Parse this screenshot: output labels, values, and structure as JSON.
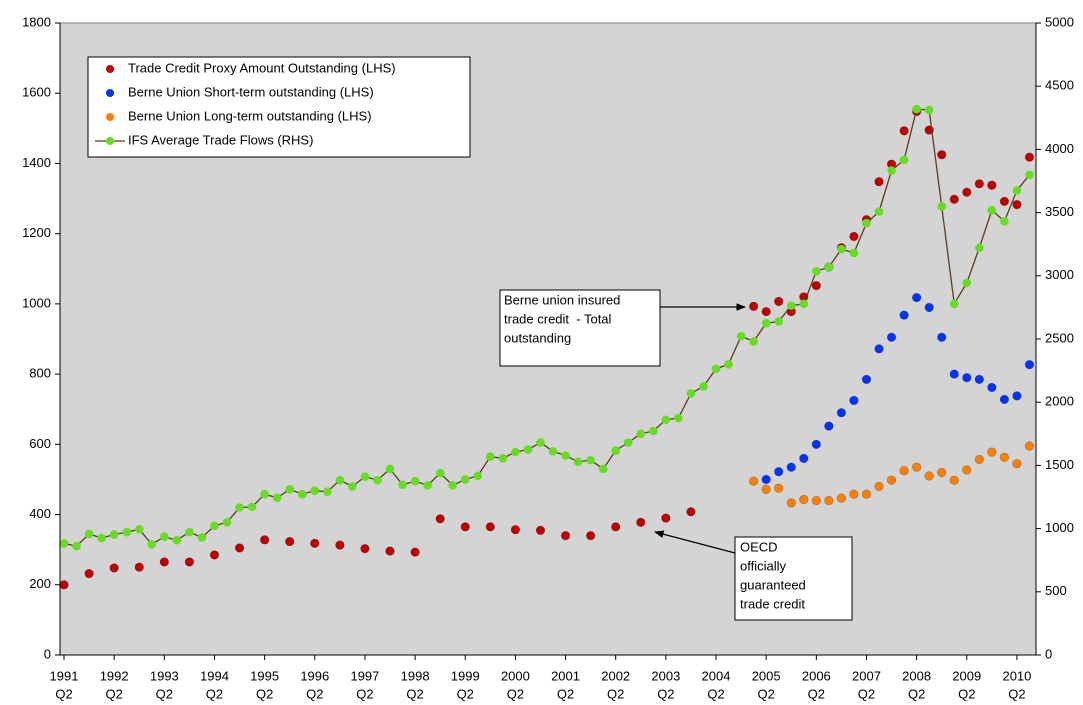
{
  "chart_data": {
    "type": "line",
    "xlim": [
      1991.17,
      2010.63
    ],
    "xticks": [
      {
        "value": 1991.25,
        "label": [
          "1991",
          "Q2"
        ]
      },
      {
        "value": 1992.25,
        "label": [
          "1992",
          "Q2"
        ]
      },
      {
        "value": 1993.25,
        "label": [
          "1993",
          "Q2"
        ]
      },
      {
        "value": 1994.25,
        "label": [
          "1994",
          "Q2"
        ]
      },
      {
        "value": 1995.25,
        "label": [
          "1995",
          "Q2"
        ]
      },
      {
        "value": 1996.25,
        "label": [
          "1996",
          "Q2"
        ]
      },
      {
        "value": 1997.25,
        "label": [
          "1997",
          "Q2"
        ]
      },
      {
        "value": 1998.25,
        "label": [
          "1998",
          "Q2"
        ]
      },
      {
        "value": 1999.25,
        "label": [
          "1999",
          "Q2"
        ]
      },
      {
        "value": 2000.25,
        "label": [
          "2000",
          "Q2"
        ]
      },
      {
        "value": 2001.25,
        "label": [
          "2001",
          "Q2"
        ]
      },
      {
        "value": 2002.25,
        "label": [
          "2002",
          "Q2"
        ]
      },
      {
        "value": 2003.25,
        "label": [
          "2003",
          "Q2"
        ]
      },
      {
        "value": 2004.25,
        "label": [
          "2004",
          "Q2"
        ]
      },
      {
        "value": 2005.25,
        "label": [
          "2005",
          "Q2"
        ]
      },
      {
        "value": 2006.25,
        "label": [
          "2006",
          "Q2"
        ]
      },
      {
        "value": 2007.25,
        "label": [
          "2007",
          "Q2"
        ]
      },
      {
        "value": 2008.25,
        "label": [
          "2008",
          "Q2"
        ]
      },
      {
        "value": 2009.25,
        "label": [
          "2009",
          "Q2"
        ]
      },
      {
        "value": 2010.25,
        "label": [
          "2010",
          "Q2"
        ]
      }
    ],
    "ylim": [
      0,
      1800
    ],
    "yticks": [
      0,
      200,
      400,
      600,
      800,
      1000,
      1200,
      1400,
      1600,
      1800
    ],
    "y2lim": [
      0,
      5000
    ],
    "y2ticks": [
      0,
      500,
      1000,
      1500,
      2000,
      2500,
      3000,
      3500,
      4000,
      4500,
      5000
    ],
    "background": "#d4d4d4",
    "series": [
      {
        "name": "Trade Credit Proxy Amount Outstanding (LHS)",
        "color": "#c00000",
        "line": false,
        "x": [
          1991.25,
          1991.75,
          1992.25,
          1992.75,
          1993.25,
          1993.75,
          1994.25,
          1994.75,
          1995.25,
          1995.75,
          1996.25,
          1996.75,
          1997.25,
          1997.75,
          1998.25,
          1998.75,
          1999.25,
          1999.75,
          2000.25,
          2000.75,
          2001.25,
          2001.75,
          2002.25,
          2002.75,
          2003.25,
          2003.75,
          2005.0,
          2005.25,
          2005.5,
          2005.75,
          2006.0,
          2006.25,
          2006.5,
          2006.75,
          2007.0,
          2007.25,
          2007.5,
          2007.75,
          2008.0,
          2008.25,
          2008.5,
          2008.75,
          2009.0,
          2009.25,
          2009.5,
          2009.75,
          2010.0,
          2010.25,
          2010.5
        ],
        "values": [
          200,
          232,
          248,
          250,
          265,
          265,
          285,
          305,
          328,
          323,
          318,
          313,
          303,
          296,
          293,
          388,
          365,
          365,
          357,
          355,
          340,
          340,
          365,
          378,
          390,
          408,
          993,
          978,
          1007,
          978,
          1020,
          1052,
          1105,
          1160,
          1192,
          1240,
          1348,
          1398,
          1493,
          1548,
          1495,
          1425,
          1298,
          1318,
          1342,
          1338,
          1292,
          1283,
          1418
        ]
      },
      {
        "name": "Berne Union Short-term outstanding (LHS)",
        "color": "#0033ff",
        "line": false,
        "x": [
          2005.25,
          2005.5,
          2005.75,
          2006.0,
          2006.25,
          2006.5,
          2006.75,
          2007.0,
          2007.25,
          2007.5,
          2007.75,
          2008.0,
          2008.25,
          2008.5,
          2008.75,
          2009.0,
          2009.25,
          2009.5,
          2009.75,
          2010.0,
          2010.25,
          2010.5
        ],
        "values": [
          500,
          522,
          535,
          560,
          600,
          652,
          690,
          725,
          785,
          872,
          905,
          968,
          1018,
          990,
          905,
          800,
          790,
          785,
          762,
          728,
          738,
          827
        ]
      },
      {
        "name": "Berne Union Long-term outstanding (LHS)",
        "color": "#ff8000",
        "line": false,
        "x": [
          2005.0,
          2005.25,
          2005.5,
          2005.75,
          2006.0,
          2006.25,
          2006.5,
          2006.75,
          2007.0,
          2007.25,
          2007.5,
          2007.75,
          2008.0,
          2008.25,
          2008.5,
          2008.75,
          2009.0,
          2009.25,
          2009.5,
          2009.75,
          2010.0,
          2010.25,
          2010.5
        ],
        "values": [
          495,
          472,
          475,
          433,
          443,
          440,
          440,
          447,
          458,
          458,
          480,
          498,
          525,
          535,
          510,
          520,
          498,
          527,
          557,
          578,
          563,
          545,
          595
        ]
      },
      {
        "name": "IFS Average Trade Flows (RHS)",
        "color": "#66dd22",
        "line_color": "#5a3e1b",
        "line": true,
        "axis": "y2",
        "x": [
          1991.25,
          1991.5,
          1991.75,
          1992.0,
          1992.25,
          1992.5,
          1992.75,
          1993.0,
          1993.25,
          1993.5,
          1993.75,
          1994.0,
          1994.25,
          1994.5,
          1994.75,
          1995.0,
          1995.25,
          1995.5,
          1995.75,
          1996.0,
          1996.25,
          1996.5,
          1996.75,
          1997.0,
          1997.25,
          1997.5,
          1997.75,
          1998.0,
          1998.25,
          1998.5,
          1998.75,
          1999.0,
          1999.25,
          1999.5,
          1999.75,
          2000.0,
          2000.25,
          2000.5,
          2000.75,
          2001.0,
          2001.25,
          2001.5,
          2001.75,
          2002.0,
          2002.25,
          2002.5,
          2002.75,
          2003.0,
          2003.25,
          2003.5,
          2003.75,
          2004.0,
          2004.25,
          2004.5,
          2004.75,
          2005.0,
          2005.25,
          2005.5,
          2005.75,
          2006.0,
          2006.25,
          2006.5,
          2006.75,
          2007.0,
          2007.25,
          2007.5,
          2007.75,
          2008.0,
          2008.25,
          2008.5,
          2008.75,
          2009.0,
          2009.25,
          2009.5,
          2009.75,
          2010.0,
          2010.25,
          2010.5
        ],
        "values": [
          883,
          861,
          958,
          925,
          953,
          972,
          994,
          875,
          936,
          908,
          972,
          930,
          1022,
          1050,
          1167,
          1172,
          1272,
          1244,
          1311,
          1272,
          1300,
          1292,
          1383,
          1333,
          1411,
          1383,
          1472,
          1347,
          1375,
          1342,
          1439,
          1342,
          1389,
          1417,
          1569,
          1556,
          1606,
          1625,
          1681,
          1611,
          1578,
          1528,
          1542,
          1472,
          1617,
          1681,
          1750,
          1772,
          1861,
          1875,
          2069,
          2125,
          2264,
          2300,
          2522,
          2481,
          2625,
          2639,
          2764,
          2778,
          3036,
          3069,
          3211,
          3181,
          3417,
          3508,
          3833,
          3917,
          4319,
          4311,
          3550,
          2778,
          2944,
          3222,
          3519,
          3431,
          3675,
          3800
        ]
      }
    ],
    "annotations": [
      {
        "lines": [
          "Berne union insured",
          "trade credit  - Total",
          "outstanding"
        ]
      },
      {
        "lines": [
          "OECD",
          "officially",
          "guaranteed",
          "trade credit"
        ]
      }
    ]
  }
}
